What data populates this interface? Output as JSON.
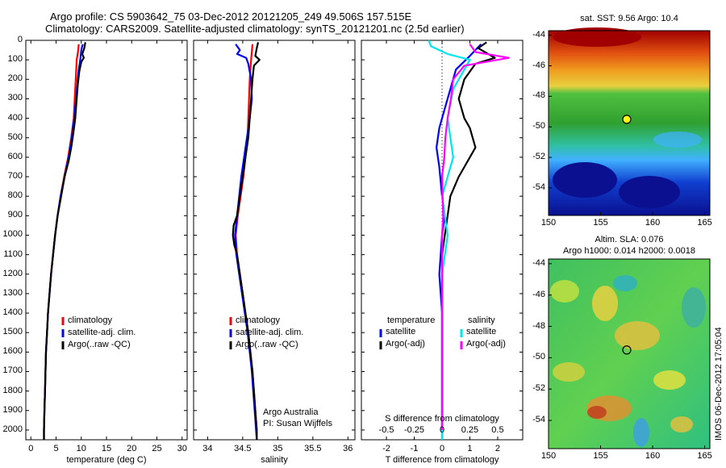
{
  "header": {
    "line1": "Argo profile: CS 5903642_75 03-Dec-2012 20121205_249 49.506S 157.515E",
    "line2": "Climatology: CARS2009. Satellite-adjusted climatology: synTS_20121201.nc (2.5d earlier)"
  },
  "colors": {
    "climatology": "#ff0000",
    "satellite": "#0000ff",
    "argo": "#000000",
    "sat_salinity": "#00e5ee",
    "argo_salinity": "#ff00ff"
  },
  "chart_data": [
    {
      "type": "line",
      "xlabel": "temperature (deg C)",
      "ylabel": "",
      "xlim": [
        -1,
        31
      ],
      "ylim": [
        2050,
        0
      ],
      "xticks": [
        0,
        5,
        10,
        15,
        20,
        25,
        30
      ],
      "yticks": [
        0,
        100,
        200,
        300,
        400,
        500,
        600,
        700,
        800,
        900,
        1000,
        1100,
        1200,
        1300,
        1400,
        1500,
        1600,
        1700,
        1800,
        1900,
        2000
      ],
      "legend": [
        "climatology",
        "satellite-adj. clim.",
        "Argo(..raw -QC)"
      ],
      "series": [
        {
          "name": "climatology",
          "color": "#ff0000",
          "points": [
            [
              9.5,
              20
            ],
            [
              9.4,
              50
            ],
            [
              9.1,
              100
            ],
            [
              8.9,
              200
            ],
            [
              8.7,
              300
            ],
            [
              8.5,
              400
            ],
            [
              8.0,
              500
            ],
            [
              7.4,
              600
            ],
            [
              6.6,
              700
            ],
            [
              5.9,
              800
            ],
            [
              5.3,
              900
            ],
            [
              4.8,
              1000
            ],
            [
              4.4,
              1100
            ],
            [
              4.0,
              1200
            ],
            [
              3.7,
              1300
            ],
            [
              3.4,
              1400
            ],
            [
              3.2,
              1500
            ],
            [
              3.0,
              1600
            ],
            [
              2.9,
              1700
            ],
            [
              2.8,
              1800
            ],
            [
              2.7,
              1900
            ],
            [
              2.6,
              2000
            ],
            [
              2.6,
              2050
            ]
          ]
        },
        {
          "name": "satellite-adj. clim.",
          "color": "#0000ff",
          "points": [
            [
              10.3,
              20
            ],
            [
              10.0,
              50
            ],
            [
              9.8,
              100
            ],
            [
              9.5,
              150
            ],
            [
              9.3,
              200
            ],
            [
              9.0,
              300
            ],
            [
              8.6,
              400
            ],
            [
              8.1,
              500
            ],
            [
              7.5,
              600
            ],
            [
              6.7,
              700
            ],
            [
              5.9,
              800
            ],
            [
              5.3,
              900
            ],
            [
              4.8,
              1000
            ],
            [
              4.4,
              1100
            ],
            [
              4.0,
              1200
            ],
            [
              3.7,
              1300
            ],
            [
              3.4,
              1400
            ],
            [
              3.2,
              1500
            ],
            [
              3.0,
              1600
            ],
            [
              2.9,
              1700
            ],
            [
              2.8,
              1800
            ],
            [
              2.7,
              1900
            ],
            [
              2.6,
              2000
            ],
            [
              2.6,
              2050
            ]
          ]
        },
        {
          "name": "Argo(..raw -QC)",
          "color": "#000000",
          "points": [
            [
              10.8,
              10
            ],
            [
              10.6,
              40
            ],
            [
              10.2,
              70
            ],
            [
              10.5,
              90
            ],
            [
              10.0,
              110
            ],
            [
              9.6,
              160
            ],
            [
              9.3,
              230
            ],
            [
              9.1,
              300
            ],
            [
              8.8,
              400
            ],
            [
              8.4,
              480
            ],
            [
              8.0,
              550
            ],
            [
              7.5,
              620
            ],
            [
              6.7,
              700
            ],
            [
              6.0,
              800
            ],
            [
              5.3,
              900
            ],
            [
              4.8,
              1000
            ],
            [
              4.4,
              1100
            ],
            [
              4.0,
              1200
            ],
            [
              3.7,
              1300
            ],
            [
              3.4,
              1400
            ],
            [
              3.2,
              1500
            ],
            [
              3.0,
              1600
            ],
            [
              2.9,
              1700
            ],
            [
              2.8,
              1800
            ],
            [
              2.7,
              1900
            ],
            [
              2.6,
              2000
            ],
            [
              2.6,
              2050
            ]
          ]
        }
      ]
    },
    {
      "type": "line",
      "xlabel": "salinity",
      "xlim": [
        33.8,
        36.1
      ],
      "ylim": [
        2050,
        0
      ],
      "xticks": [
        34,
        34.5,
        35,
        35.5,
        36
      ],
      "xticklabels": [
        "34",
        "34.5",
        "35",
        "35.5",
        "36"
      ],
      "legend": [
        "climatology",
        "satellite-adj. clim.",
        "Argo(..raw -QC)"
      ],
      "annotation": [
        "Argo Australia",
        "PI: Susan Wijffels"
      ],
      "series": [
        {
          "name": "climatology",
          "color": "#ff0000",
          "points": [
            [
              34.64,
              20
            ],
            [
              34.62,
              100
            ],
            [
              34.6,
              200
            ],
            [
              34.59,
              300
            ],
            [
              34.58,
              400
            ],
            [
              34.57,
              500
            ],
            [
              34.54,
              600
            ],
            [
              34.51,
              700
            ],
            [
              34.47,
              800
            ],
            [
              34.43,
              900
            ],
            [
              34.4,
              1000
            ],
            [
              34.42,
              1100
            ],
            [
              34.46,
              1200
            ],
            [
              34.5,
              1300
            ],
            [
              34.54,
              1400
            ],
            [
              34.58,
              1500
            ],
            [
              34.61,
              1600
            ],
            [
              34.64,
              1700
            ],
            [
              34.66,
              1800
            ],
            [
              34.68,
              1900
            ],
            [
              34.7,
              2000
            ],
            [
              34.7,
              2050
            ]
          ]
        },
        {
          "name": "satellite-adj. clim.",
          "color": "#0000ff",
          "points": [
            [
              34.4,
              20
            ],
            [
              34.46,
              50
            ],
            [
              34.42,
              70
            ],
            [
              34.55,
              90
            ],
            [
              34.58,
              120
            ],
            [
              34.62,
              200
            ],
            [
              34.63,
              300
            ],
            [
              34.6,
              400
            ],
            [
              34.56,
              500
            ],
            [
              34.52,
              600
            ],
            [
              34.48,
              700
            ],
            [
              34.45,
              800
            ],
            [
              34.42,
              900
            ],
            [
              34.39,
              1000
            ],
            [
              34.41,
              1100
            ],
            [
              34.45,
              1200
            ],
            [
              34.49,
              1300
            ],
            [
              34.53,
              1400
            ],
            [
              34.57,
              1500
            ],
            [
              34.6,
              1600
            ],
            [
              34.63,
              1700
            ],
            [
              34.65,
              1800
            ],
            [
              34.67,
              1900
            ],
            [
              34.69,
              2000
            ],
            [
              34.7,
              2050
            ]
          ]
        },
        {
          "name": "Argo(..raw -QC)",
          "color": "#000000",
          "points": [
            [
              34.72,
              10
            ],
            [
              34.7,
              40
            ],
            [
              34.68,
              80
            ],
            [
              34.74,
              100
            ],
            [
              34.66,
              130
            ],
            [
              34.64,
              200
            ],
            [
              34.62,
              300
            ],
            [
              34.6,
              400
            ],
            [
              34.58,
              500
            ],
            [
              34.54,
              600
            ],
            [
              34.5,
              700
            ],
            [
              34.46,
              800
            ],
            [
              34.42,
              900
            ],
            [
              34.37,
              950
            ],
            [
              34.36,
              1000
            ],
            [
              34.38,
              1050
            ],
            [
              34.42,
              1100
            ],
            [
              34.46,
              1200
            ],
            [
              34.5,
              1300
            ],
            [
              34.54,
              1400
            ],
            [
              34.58,
              1500
            ],
            [
              34.61,
              1600
            ],
            [
              34.64,
              1700
            ],
            [
              34.66,
              1800
            ],
            [
              34.68,
              1900
            ],
            [
              34.7,
              2000
            ],
            [
              34.7,
              2050
            ]
          ]
        }
      ]
    },
    {
      "type": "line",
      "xlabel": "T difference from climatology",
      "xlabel2": "S difference from climatology",
      "xlim": [
        -2.9,
        2.9
      ],
      "ylim": [
        2050,
        0
      ],
      "xticks": [
        -2,
        -1,
        0,
        1,
        2
      ],
      "xticks2": [
        -0.5,
        -0.25,
        0,
        0.25,
        0.5
      ],
      "xticklabels2": [
        "-0.5",
        "-0.25",
        "0",
        "0.25",
        "0.5"
      ],
      "legend_titles": [
        "temperature",
        "salinity"
      ],
      "legend": [
        "satellite",
        "Argo(-adj)",
        "satellite",
        "Argo(-adj)"
      ],
      "series": [
        {
          "name": "temperature satellite",
          "color": "#0000ff",
          "points": [
            [
              1.4,
              20
            ],
            [
              1.0,
              80
            ],
            [
              0.5,
              150
            ],
            [
              0.3,
              250
            ],
            [
              0.1,
              350
            ],
            [
              -0.1,
              450
            ],
            [
              -0.2,
              550
            ],
            [
              -0.1,
              650
            ],
            [
              0,
              800
            ],
            [
              0.1,
              900
            ],
            [
              0,
              1000
            ],
            [
              -0.1,
              1200
            ],
            [
              0,
              1400
            ],
            [
              0,
              1600
            ],
            [
              0,
              2000
            ],
            [
              0,
              2050
            ]
          ]
        },
        {
          "name": "temperature Argo(-adj)",
          "color": "#000000",
          "points": [
            [
              1.6,
              10
            ],
            [
              1.3,
              40
            ],
            [
              1.9,
              90
            ],
            [
              1.2,
              120
            ],
            [
              0.8,
              200
            ],
            [
              0.6,
              300
            ],
            [
              0.8,
              400
            ],
            [
              1.0,
              450
            ],
            [
              1.2,
              550
            ],
            [
              0.8,
              650
            ],
            [
              0.6,
              700
            ],
            [
              0.3,
              800
            ],
            [
              0.2,
              900
            ],
            [
              0.1,
              1000
            ],
            [
              0,
              1100
            ],
            [
              0,
              1200
            ],
            [
              0,
              1300
            ],
            [
              0,
              1400
            ],
            [
              0,
              1500
            ],
            [
              0,
              1600
            ],
            [
              0,
              1800
            ],
            [
              0,
              2000
            ]
          ]
        },
        {
          "name": "salinity satellite",
          "color": "#00e5ee",
          "points": [
            [
              -0.12,
              0
            ],
            [
              -0.1,
              30
            ],
            [
              0.05,
              70
            ],
            [
              0.25,
              100
            ],
            [
              0.1,
              250
            ],
            [
              0.05,
              400
            ],
            [
              0.1,
              600
            ],
            [
              0,
              800
            ],
            [
              0.05,
              1000
            ],
            [
              0,
              1200
            ],
            [
              0,
              1400
            ],
            [
              0,
              1600
            ],
            [
              0,
              1800
            ],
            [
              0,
              2050
            ]
          ]
        },
        {
          "name": "salinity Argo(-adj)",
          "color": "#ff00ff",
          "points": [
            [
              0.25,
              20
            ],
            [
              0.3,
              60
            ],
            [
              0.6,
              90
            ],
            [
              0.2,
              130
            ],
            [
              0.1,
              200
            ],
            [
              0.08,
              300
            ],
            [
              0.05,
              400
            ],
            [
              0.03,
              500
            ],
            [
              0.02,
              600
            ],
            [
              0,
              700
            ],
            [
              0.01,
              900
            ],
            [
              0,
              1000
            ],
            [
              0,
              1200
            ],
            [
              0,
              1400
            ],
            [
              0,
              1600
            ],
            [
              0,
              1800
            ],
            [
              0,
              2000
            ]
          ]
        }
      ]
    },
    {
      "type": "heatmap",
      "title": "sat. SST: 9.56 Argo: 10.4",
      "xticks": [
        150,
        155,
        160,
        165
      ],
      "yticks": [
        -44,
        -46,
        -48,
        -50,
        -52,
        -54
      ],
      "xlim": [
        150,
        165.5
      ],
      "ylim": [
        -55.8,
        -43.7
      ],
      "marker": {
        "lon": 157.515,
        "lat": -49.506
      }
    },
    {
      "type": "heatmap",
      "title_lines": [
        "Altim. SLA: 0.076",
        "Argo h1000: 0.014 h2000: 0.0018"
      ],
      "side_label": "IMOS 06-Dec-2012 17:05:04",
      "xticks": [
        150,
        155,
        160,
        165
      ],
      "yticks": [
        -44,
        -46,
        -48,
        -50,
        -52,
        -54
      ],
      "xlim": [
        150,
        165.5
      ],
      "ylim": [
        -55.8,
        -43.7
      ],
      "marker": {
        "lon": 157.515,
        "lat": -49.506
      }
    }
  ]
}
